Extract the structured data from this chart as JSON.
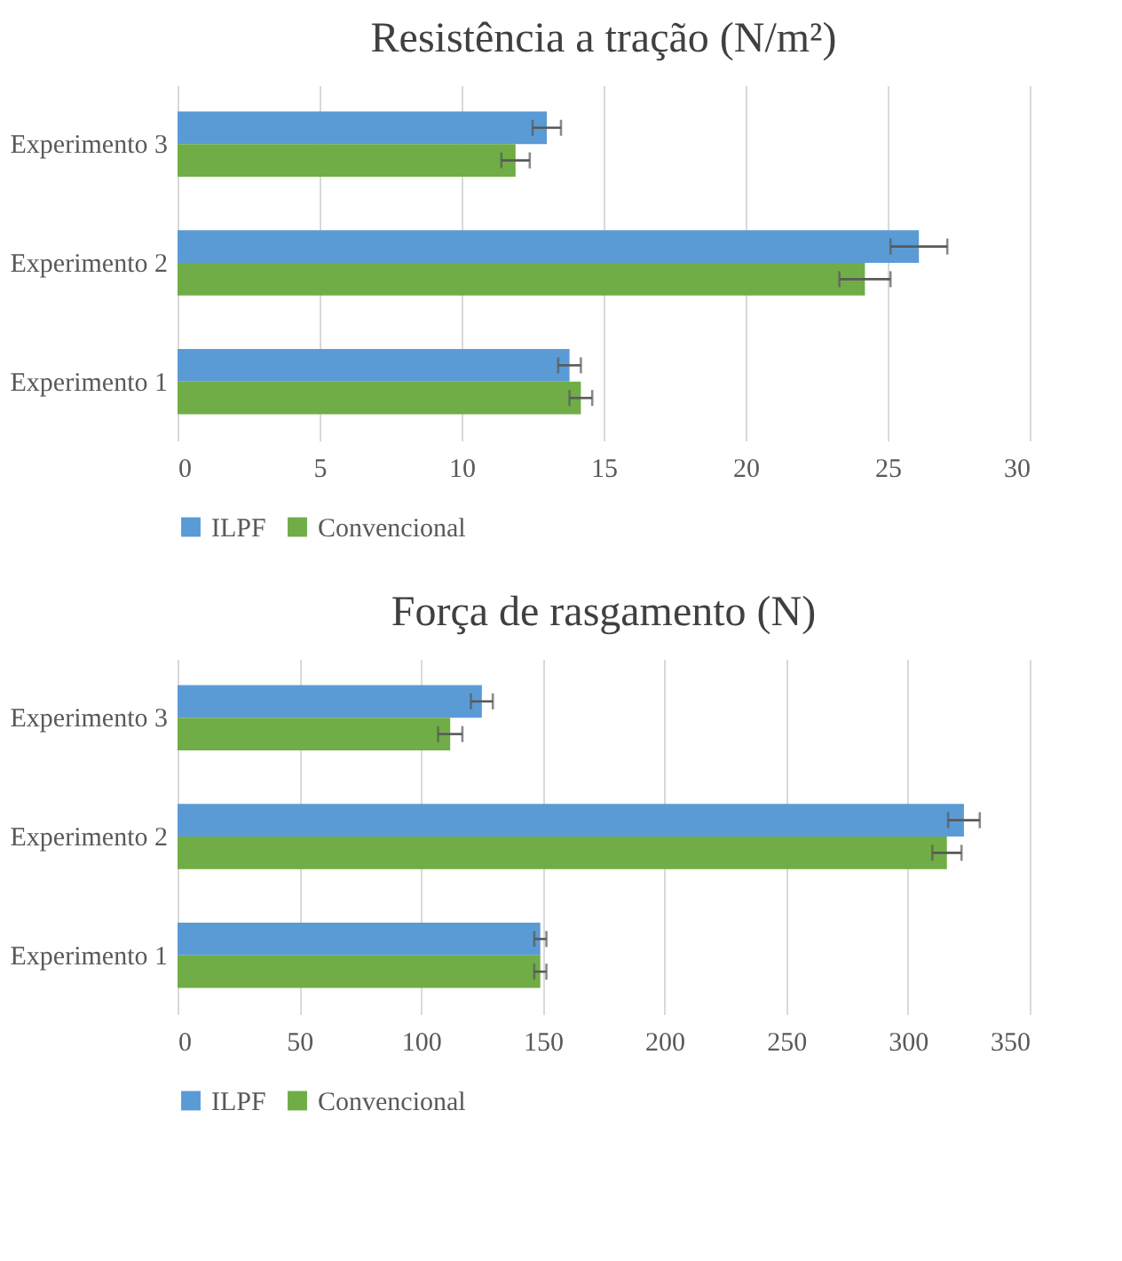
{
  "chart_data": [
    {
      "type": "bar",
      "orientation": "horizontal",
      "title": "Resistência a tração (N/m²)",
      "categories": [
        "Experimento 3",
        "Experimento 2",
        "Experimento 1"
      ],
      "series": [
        {
          "name": "ILPF",
          "color": "#5b9bd5",
          "values": [
            13.0,
            26.1,
            13.8
          ],
          "errors": [
            0.5,
            1.0,
            0.4
          ]
        },
        {
          "name": "Convencional",
          "color": "#70ad47",
          "values": [
            11.9,
            24.2,
            14.2
          ],
          "errors": [
            0.5,
            0.9,
            0.4
          ]
        }
      ],
      "xlim": [
        0,
        30
      ],
      "xticks": [
        0,
        5,
        10,
        15,
        20,
        25,
        30
      ],
      "grid": "x",
      "legend": "bottom"
    },
    {
      "type": "bar",
      "orientation": "horizontal",
      "title": "Força de rasgamento (N)",
      "categories": [
        "Experimento 3",
        "Experimento 2",
        "Experimento 1"
      ],
      "series": [
        {
          "name": "ILPF",
          "color": "#5b9bd5",
          "values": [
            125,
            323,
            149
          ],
          "errors": [
            4.5,
            6.5,
            2.5
          ]
        },
        {
          "name": "Convencional",
          "color": "#70ad47",
          "values": [
            112,
            316,
            149
          ],
          "errors": [
            5,
            6,
            2.5
          ]
        }
      ],
      "xlim": [
        0,
        350
      ],
      "xticks": [
        0,
        50,
        100,
        150,
        200,
        250,
        300,
        350
      ],
      "grid": "x",
      "legend": "bottom"
    }
  ]
}
